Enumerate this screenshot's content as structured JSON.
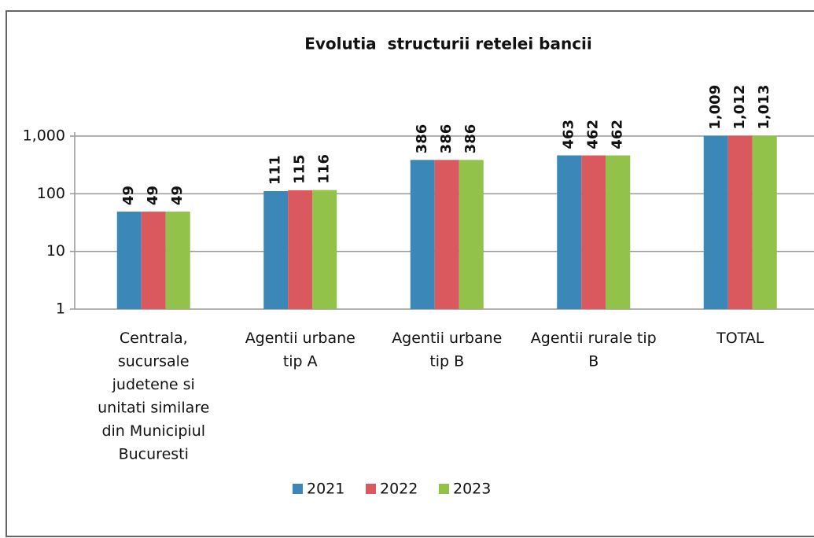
{
  "chart_data": {
    "type": "bar",
    "title": "Evolutia  structurii retelei bancii",
    "categories": [
      "Centrala, sucursale judetene si unitati similare din Municipiul Bucuresti",
      "Agentii urbane tip A",
      "Agentii urbane tip B",
      "Agentii rurale tip B",
      "TOTAL"
    ],
    "series": [
      {
        "name": "2021",
        "color": "#3b87b8",
        "values": [
          49,
          111,
          386,
          463,
          1009
        ],
        "value_labels": [
          "49",
          "111",
          "386",
          "463",
          "1,009"
        ]
      },
      {
        "name": "2022",
        "color": "#d9595e",
        "values": [
          49,
          115,
          386,
          462,
          1012
        ],
        "value_labels": [
          "49",
          "115",
          "386",
          "462",
          "1,012"
        ]
      },
      {
        "name": "2023",
        "color": "#92c24a",
        "values": [
          49,
          116,
          386,
          462,
          1013
        ],
        "value_labels": [
          "49",
          "116",
          "386",
          "462",
          "1,013"
        ]
      }
    ],
    "ylim": [
      1,
      1000
    ],
    "yticks": [
      1,
      10,
      100,
      {
        "value": 1000,
        "label": "1,000"
      }
    ],
    "log_scale": true,
    "grid": true,
    "legend": "bottom"
  }
}
